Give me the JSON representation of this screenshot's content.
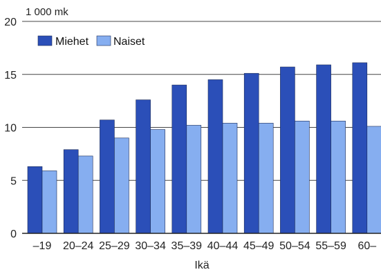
{
  "chart_data": {
    "type": "bar",
    "unit_label": "1 000 mk",
    "xlabel": "Ikä",
    "ylabel": "",
    "ylim": [
      0,
      20
    ],
    "yticks": [
      0,
      5,
      10,
      15,
      20
    ],
    "grid": true,
    "legend_position": "top-left",
    "categories": [
      "–19",
      "20–24",
      "25–29",
      "30–34",
      "35–39",
      "40–44",
      "45–49",
      "50–54",
      "55–59",
      "60–"
    ],
    "series": [
      {
        "name": "Miehet",
        "color": "#2b4fb8",
        "values": [
          6.3,
          7.9,
          10.7,
          12.6,
          14.0,
          14.5,
          15.1,
          15.7,
          15.9,
          16.1
        ]
      },
      {
        "name": "Naiset",
        "color": "#86aef0",
        "values": [
          5.9,
          7.3,
          9.0,
          9.8,
          10.2,
          10.4,
          10.4,
          10.6,
          10.6,
          10.1
        ]
      }
    ]
  }
}
